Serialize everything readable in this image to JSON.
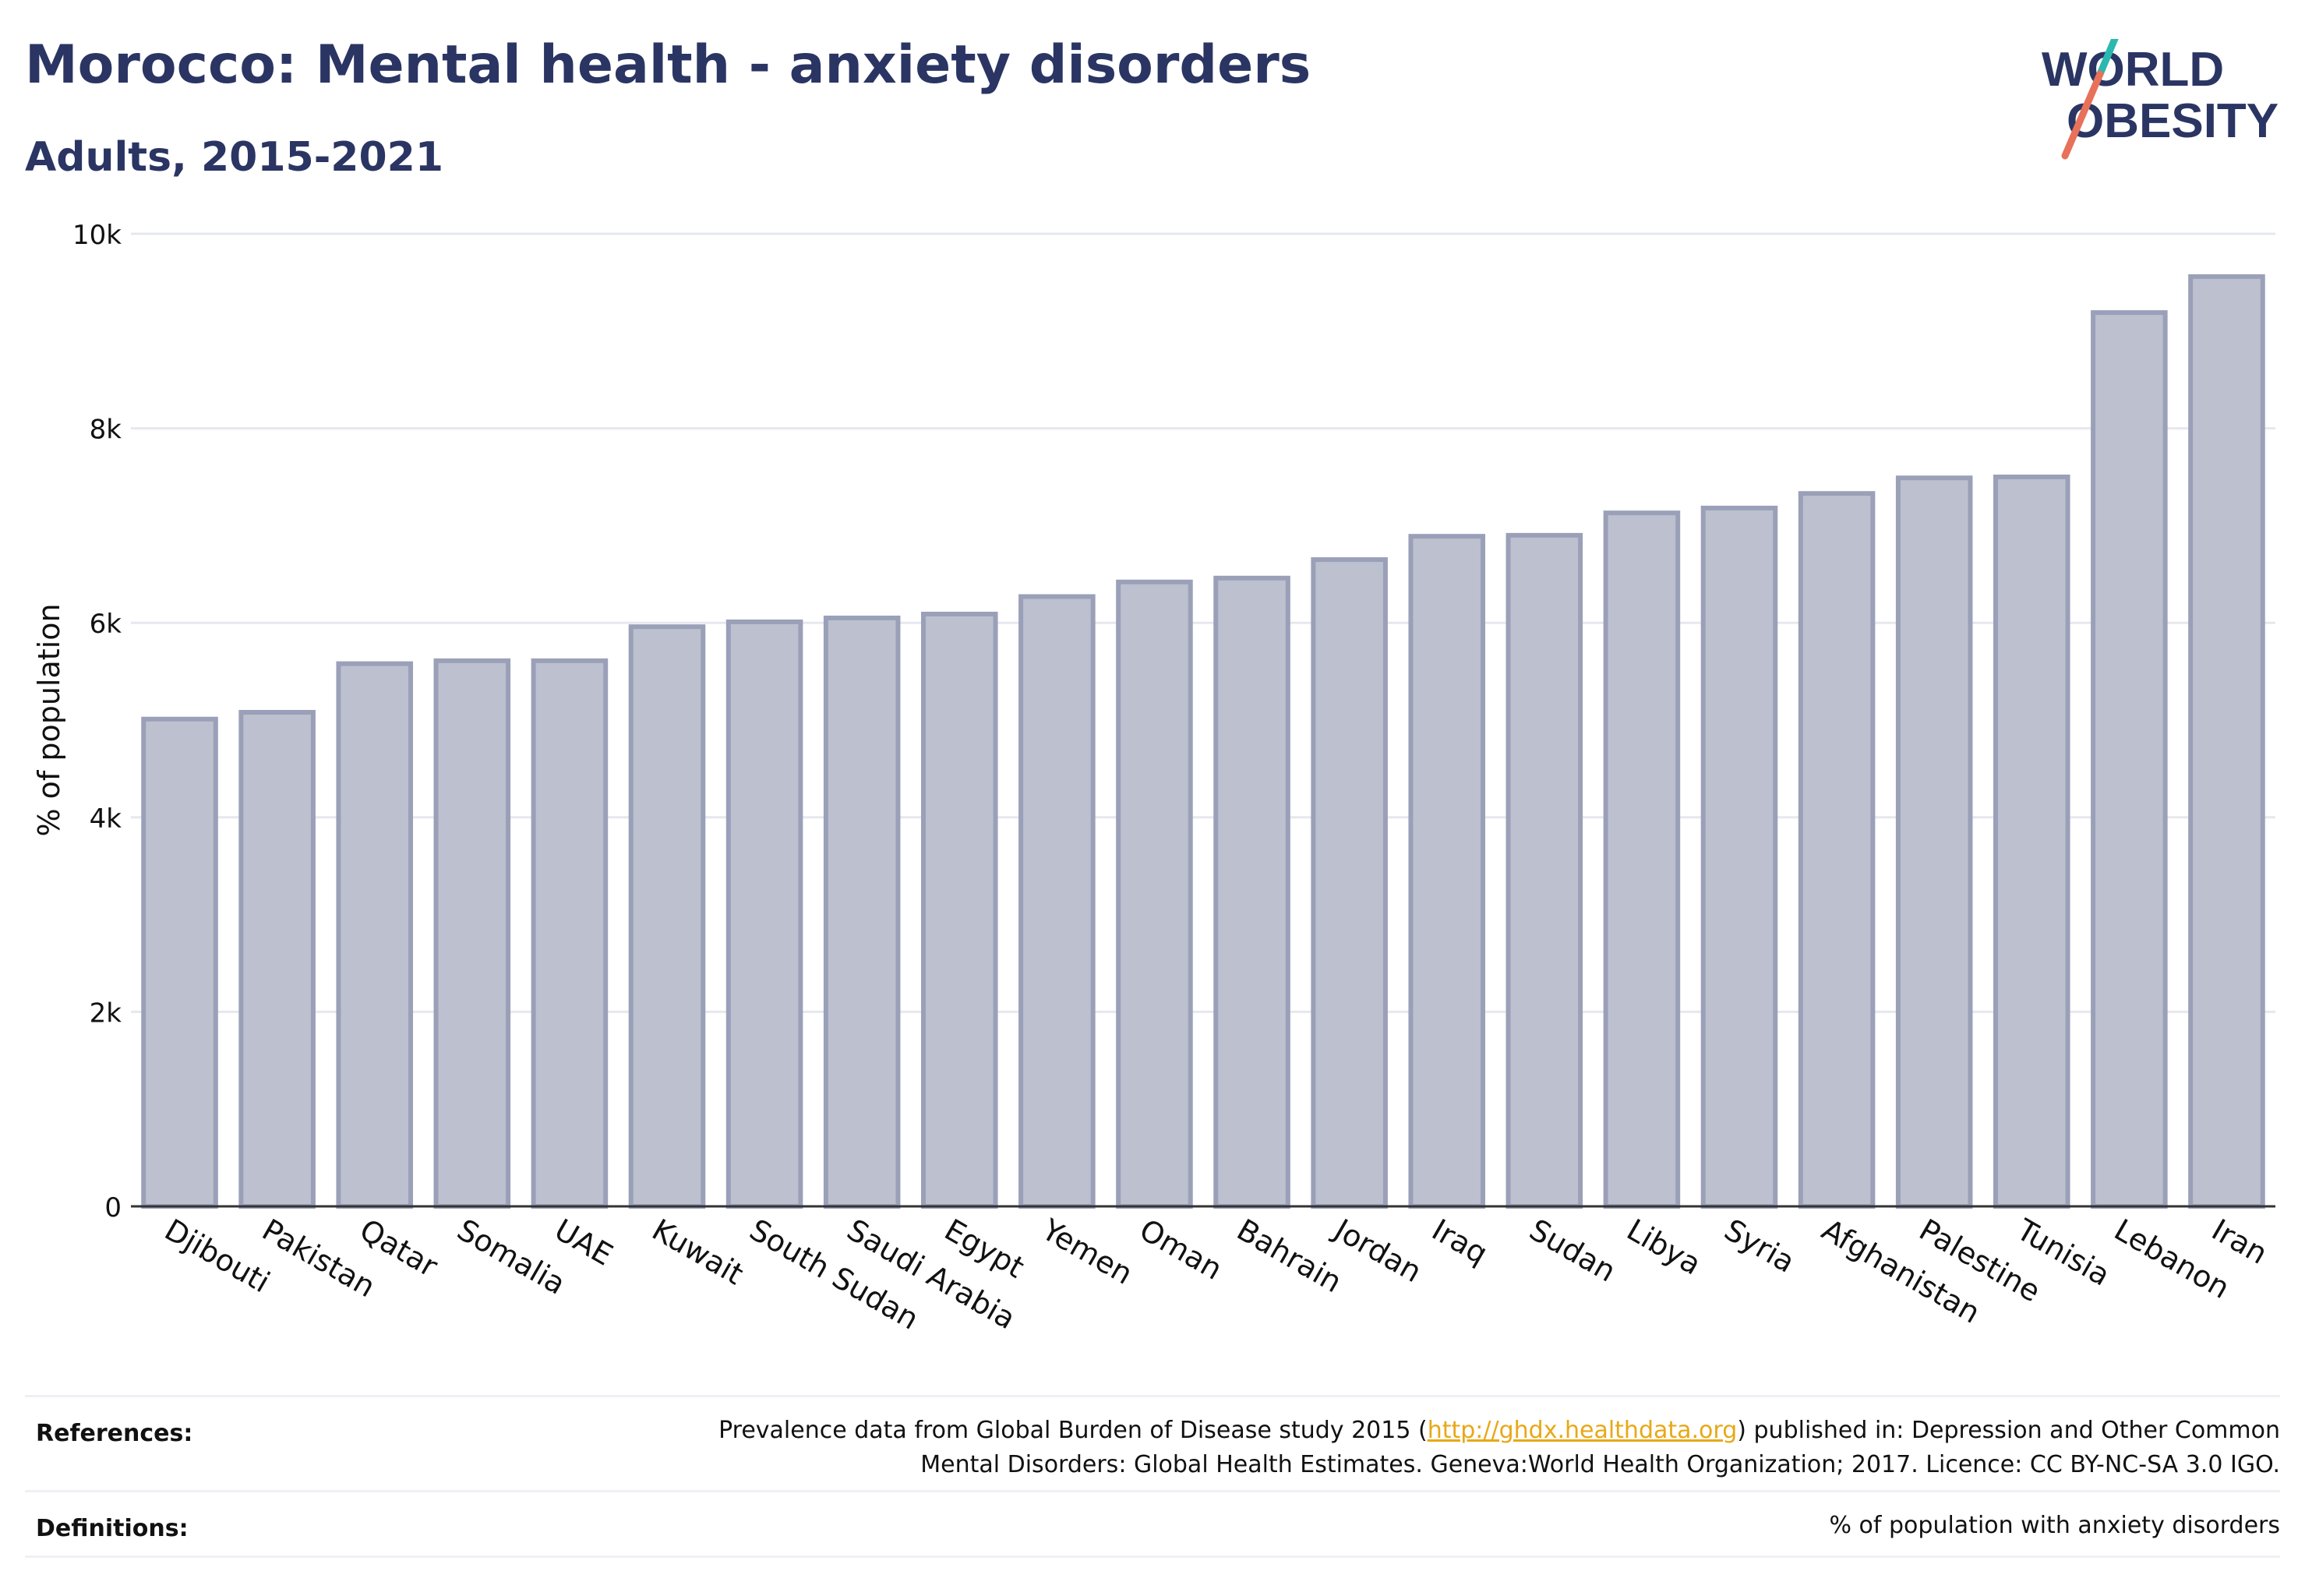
{
  "header": {
    "title": "Morocco: Mental health - anxiety disorders",
    "subtitle": "Adults, 2015-2021"
  },
  "logo": {
    "line1": "WORLD",
    "line2": "OBESITY"
  },
  "chart_data": {
    "type": "bar",
    "categories": [
      "Djibouti",
      "Pakistan",
      "Qatar",
      "Somalia",
      "UAE",
      "Kuwait",
      "South Sudan",
      "Saudi Arabia",
      "Egypt",
      "Yemen",
      "Oman",
      "Bahrain",
      "Jordan",
      "Iraq",
      "Sudan",
      "Libya",
      "Syria",
      "Afghanistan",
      "Palestine",
      "Tunisia",
      "Lebanon",
      "Iran"
    ],
    "values": [
      5010,
      5080,
      5580,
      5610,
      5610,
      5960,
      6010,
      6050,
      6090,
      6270,
      6420,
      6460,
      6650,
      6890,
      6900,
      7130,
      7180,
      7330,
      7490,
      7500,
      9190,
      9560
    ],
    "ylabel": "% of population",
    "ylim": [
      0,
      10000
    ],
    "yticks": [
      0,
      2000,
      4000,
      6000,
      8000,
      10000
    ],
    "ytick_labels": [
      "0",
      "2k",
      "4k",
      "6k",
      "8k",
      "10k"
    ],
    "grid": true,
    "colors": {
      "bar_fill": "#bcc0cf",
      "bar_stroke": "#9ba0b9",
      "grid": "#e6e8ee",
      "axis": "#333333"
    }
  },
  "footer": {
    "references_label": "References:",
    "references_text_pre": "Prevalence data from Global Burden of Disease study 2015 (",
    "references_link": "http://ghdx.healthdata.org",
    "references_text_post": ") published in: Depression and Other Common",
    "references_text_line2": "Mental Disorders: Global Health Estimates. Geneva:World Health Organization; 2017. Licence: CC BY-NC-SA 3.0 IGO.",
    "definitions_label": "Definitions:",
    "definitions_text": "% of population with anxiety disorders"
  }
}
